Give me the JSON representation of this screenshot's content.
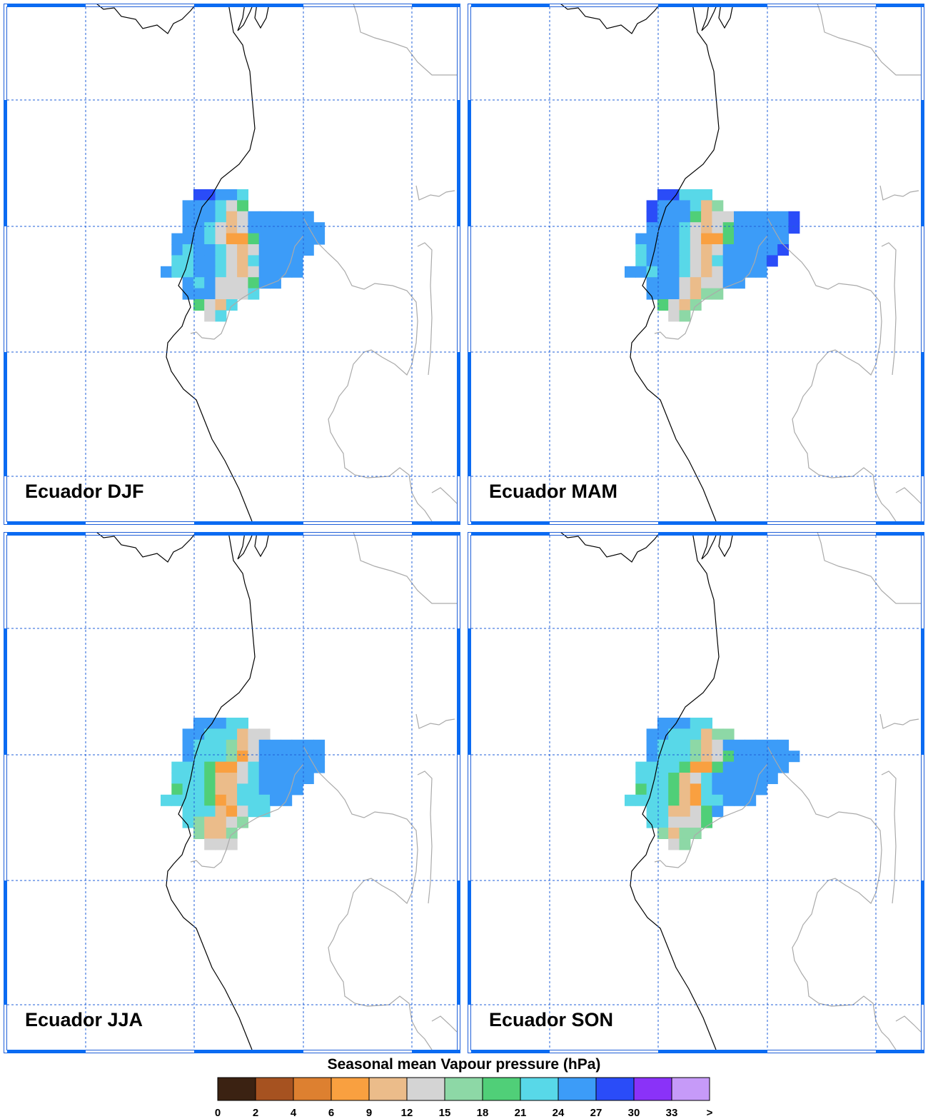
{
  "colors": {
    "frame": "#1f5fd8",
    "tick_bar": "#0b6bf2",
    "grid": "#1f5fd8",
    "coastline": "#000000",
    "borders": "#aaaaaa"
  },
  "panels": [
    {
      "label": "Ecuador DJF"
    },
    {
      "label": "Ecuador MAM"
    },
    {
      "label": "Ecuador JJA"
    },
    {
      "label": "Ecuador SON"
    }
  ],
  "colorbar": {
    "title": "Seasonal mean Vapour pressure (hPa)",
    "colors": [
      "#3b2212",
      "#a65220",
      "#dd8030",
      "#f9a040",
      "#ebbc8a",
      "#d4d4d4",
      "#8dd8a6",
      "#50cf78",
      "#58d8e8",
      "#3c9cf8",
      "#2a4cf8",
      "#8a32f8",
      "#c69af8"
    ],
    "tick_labels": [
      "0",
      "2",
      "4",
      "6",
      "9",
      "12",
      "15",
      "18",
      "21",
      "24",
      "27",
      "30",
      "33",
      ">"
    ]
  },
  "map_data": {
    "variable": "Seasonal mean Vapour pressure",
    "units": "hPa",
    "region": "Ecuador",
    "seasons": [
      "DJF",
      "MAM",
      "JJA",
      "SON"
    ]
  }
}
